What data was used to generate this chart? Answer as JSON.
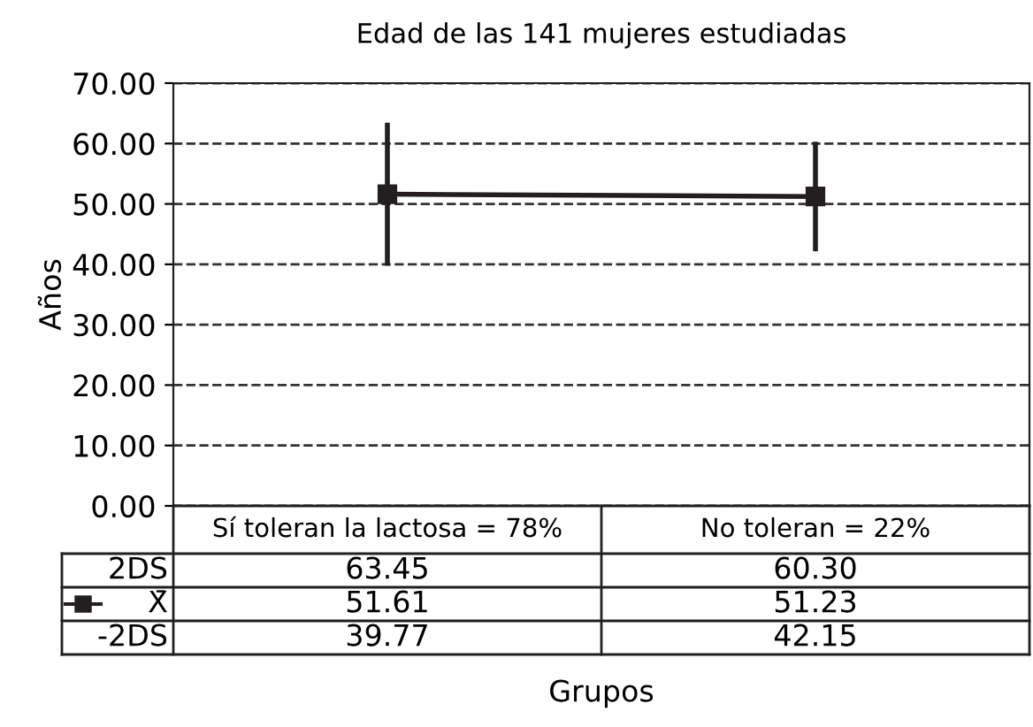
{
  "chart_data": {
    "type": "line",
    "title": "Edad de las 141 mujeres estudiadas",
    "xlabel": "Grupos",
    "ylabel": "Años",
    "categories": [
      "Sí toleran la lactosa = 78%",
      "No toleran = 22%"
    ],
    "series": [
      {
        "name": "X̄",
        "color": "#231f20",
        "values": [
          51.61,
          51.23
        ],
        "errors": [
          [
            39.77,
            63.45
          ],
          [
            42.15,
            60.3
          ]
        ]
      }
    ],
    "ylim": [
      0,
      70
    ],
    "yticks": [
      {
        "value": 0,
        "label": "0.00"
      },
      {
        "value": 10,
        "label": "10.00"
      },
      {
        "value": 20,
        "label": "20.00"
      },
      {
        "value": 30,
        "label": "30.00"
      },
      {
        "value": 40,
        "label": "40.00"
      },
      {
        "value": 50,
        "label": "50.00"
      },
      {
        "value": 60,
        "label": "60.00"
      },
      {
        "value": 70,
        "label": "70.00"
      }
    ],
    "grid": "y",
    "marker": "square",
    "line_style": "solid",
    "legend": "bottom left",
    "data_labels": true,
    "annotations": [
      "2DS",
      "63.45",
      "60.30",
      "-2DS",
      "39.77",
      "42.15"
    ]
  }
}
